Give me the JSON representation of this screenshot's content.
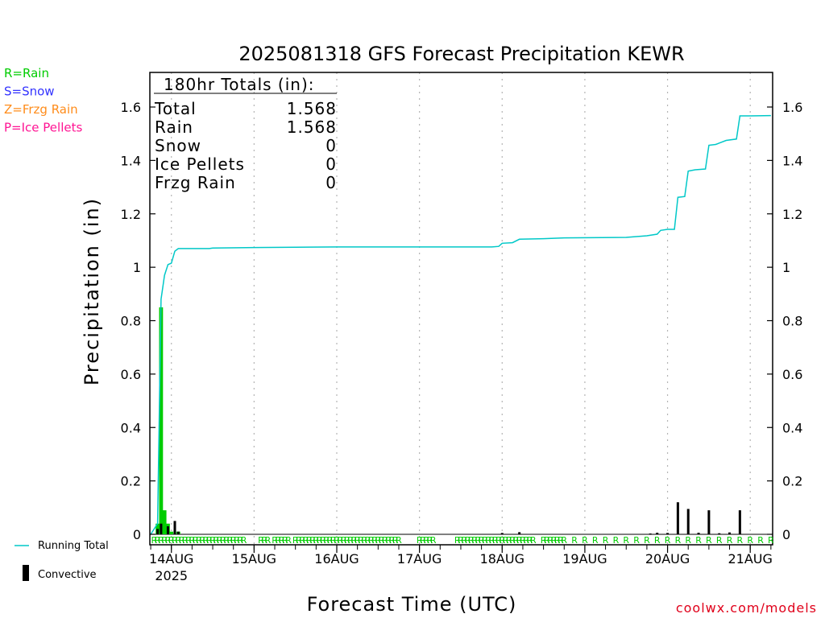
{
  "chart_data": {
    "type": "line",
    "title": "2025081318 GFS Forecast Precipitation KEWR",
    "xlabel": "Forecast Time (UTC)",
    "ylabel": "Precipitation (in)",
    "ylim": [
      0,
      1.72
    ],
    "y_ticks": [
      "0",
      "0.2",
      "0.4",
      "0.6",
      "0.8",
      "1",
      "1.2",
      "1.4",
      "1.6"
    ],
    "y_tick_values": [
      0,
      0.2,
      0.4,
      0.6,
      0.8,
      1.0,
      1.2,
      1.4,
      1.6
    ],
    "x_range_hours": [
      -0.25,
      180.5
    ],
    "x_ticks": [
      {
        "label": "14AUG",
        "sublabel": "2025",
        "hour": 6
      },
      {
        "label": "15AUG",
        "sublabel": "",
        "hour": 30
      },
      {
        "label": "16AUG",
        "sublabel": "",
        "hour": 54
      },
      {
        "label": "17AUG",
        "sublabel": "",
        "hour": 78
      },
      {
        "label": "18AUG",
        "sublabel": "",
        "hour": 102
      },
      {
        "label": "19AUG",
        "sublabel": "",
        "hour": 126
      },
      {
        "label": "20AUG",
        "sublabel": "",
        "hour": 150
      },
      {
        "label": "21AUG",
        "sublabel": "",
        "hour": 174
      }
    ],
    "legend_types": [
      {
        "label": "R=Rain",
        "color": "#00cc00"
      },
      {
        "label": "S=Snow",
        "color": "#3333ff"
      },
      {
        "label": "Z=Frzg Rain",
        "color": "#ff8c1a"
      },
      {
        "label": "P=Ice Pellets",
        "color": "#ff1493"
      }
    ],
    "legend_series": [
      {
        "label": "Running Total",
        "color": "#00c8c8"
      },
      {
        "label": "Convective",
        "color": "#000000"
      }
    ],
    "totals": {
      "header": "180hr Totals (in):",
      "rows": [
        {
          "label": "Total",
          "value": "1.568"
        },
        {
          "label": "Rain",
          "value": "1.568"
        },
        {
          "label": "Snow",
          "value": "0"
        },
        {
          "label": "Ice Pellets",
          "value": "0"
        },
        {
          "label": "Frzg Rain",
          "value": "0"
        }
      ]
    },
    "running_total": [
      [
        0,
        0
      ],
      [
        1,
        0.02
      ],
      [
        2,
        0.04
      ],
      [
        3,
        0.88
      ],
      [
        4,
        0.97
      ],
      [
        5,
        1.01
      ],
      [
        6,
        1.015
      ],
      [
        7,
        1.06
      ],
      [
        8,
        1.07
      ],
      [
        12,
        1.07
      ],
      [
        17,
        1.07
      ],
      [
        18,
        1.072
      ],
      [
        30,
        1.074
      ],
      [
        42,
        1.075
      ],
      [
        54,
        1.076
      ],
      [
        78,
        1.076
      ],
      [
        99,
        1.076
      ],
      [
        101,
        1.078
      ],
      [
        102,
        1.09
      ],
      [
        105,
        1.092
      ],
      [
        107,
        1.105
      ],
      [
        114,
        1.107
      ],
      [
        120,
        1.11
      ],
      [
        138,
        1.112
      ],
      [
        144,
        1.118
      ],
      [
        147,
        1.124
      ],
      [
        148,
        1.138
      ],
      [
        150,
        1.142
      ],
      [
        152,
        1.142
      ],
      [
        153,
        1.262
      ],
      [
        155,
        1.265
      ],
      [
        156,
        1.36
      ],
      [
        158,
        1.365
      ],
      [
        161,
        1.368
      ],
      [
        162,
        1.457
      ],
      [
        164,
        1.46
      ],
      [
        165,
        1.465
      ],
      [
        167,
        1.475
      ],
      [
        170,
        1.48
      ],
      [
        171,
        1.567
      ],
      [
        174,
        1.567
      ],
      [
        180,
        1.568
      ]
    ],
    "precip_bars": [
      {
        "hour": 2,
        "value": 0.04
      },
      {
        "hour": 3,
        "value": 0.85
      },
      {
        "hour": 4,
        "value": 0.09
      },
      {
        "hour": 5,
        "value": 0.04
      },
      {
        "hour": 6,
        "value": 0.01
      },
      {
        "hour": 8,
        "value": 0.01
      }
    ],
    "convective_bars": [
      {
        "hour": 2,
        "value": 0.02
      },
      {
        "hour": 3,
        "value": 0.04
      },
      {
        "hour": 5,
        "value": 0.03
      },
      {
        "hour": 7,
        "value": 0.05
      },
      {
        "hour": 8,
        "value": 0.01
      },
      {
        "hour": 102,
        "value": 0.005
      },
      {
        "hour": 107,
        "value": 0.008
      },
      {
        "hour": 145,
        "value": 0.003
      },
      {
        "hour": 147,
        "value": 0.006
      },
      {
        "hour": 150,
        "value": 0.005
      },
      {
        "hour": 153,
        "value": 0.12
      },
      {
        "hour": 156,
        "value": 0.095
      },
      {
        "hour": 159,
        "value": 0.006
      },
      {
        "hour": 162,
        "value": 0.09
      },
      {
        "hour": 165,
        "value": 0.004
      },
      {
        "hour": 168,
        "value": 0.007
      },
      {
        "hour": 171,
        "value": 0.09
      }
    ],
    "precip_type_hours": [
      1,
      2,
      3,
      4,
      5,
      6,
      7,
      8,
      9,
      10,
      11,
      12,
      13,
      14,
      15,
      16,
      17,
      18,
      19,
      20,
      21,
      22,
      23,
      24,
      25,
      26,
      27,
      32,
      33,
      34,
      36,
      37,
      38,
      39,
      40,
      42,
      43,
      44,
      45,
      46,
      47,
      48,
      49,
      50,
      51,
      52,
      53,
      54,
      55,
      56,
      57,
      58,
      59,
      60,
      61,
      62,
      63,
      64,
      65,
      66,
      67,
      68,
      69,
      70,
      71,
      72,
      78,
      79,
      80,
      81,
      82,
      89,
      90,
      91,
      92,
      93,
      94,
      95,
      96,
      97,
      98,
      99,
      100,
      101,
      102,
      103,
      104,
      105,
      106,
      107,
      108,
      109,
      110,
      111,
      114,
      115,
      116,
      117,
      118,
      119,
      120,
      123,
      126,
      129,
      132,
      135,
      138,
      141,
      144,
      147,
      150,
      153,
      156,
      159,
      162,
      165,
      168,
      171,
      174,
      177,
      180
    ],
    "type_marker": "R",
    "attribution": "coolwx.com/models"
  }
}
